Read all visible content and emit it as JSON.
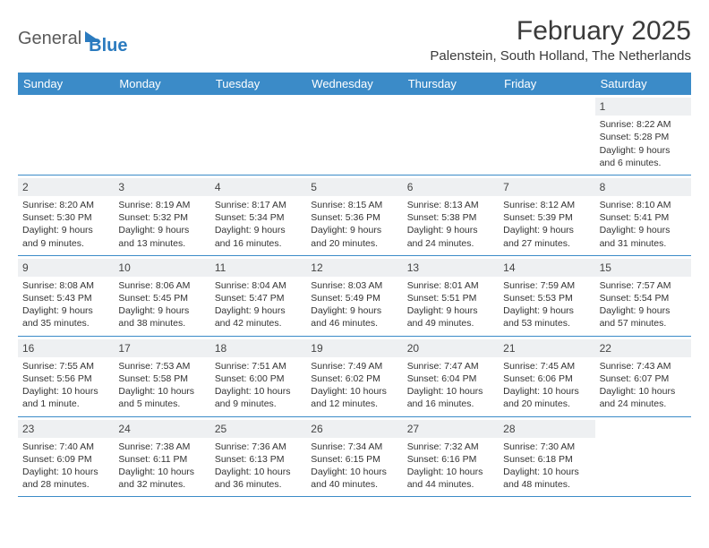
{
  "logo": {
    "text1": "General",
    "text2": "Blue"
  },
  "title": "February 2025",
  "subtitle": "Palenstein, South Holland, The Netherlands",
  "colors": {
    "header_bg": "#3b8bc8",
    "header_text": "#ffffff",
    "daynum_bg": "#eef0f2",
    "border": "#3b8bc8",
    "logo_blue": "#2b7bbf",
    "logo_gray": "#5a5a5a"
  },
  "day_names": [
    "Sunday",
    "Monday",
    "Tuesday",
    "Wednesday",
    "Thursday",
    "Friday",
    "Saturday"
  ],
  "weeks": [
    [
      null,
      null,
      null,
      null,
      null,
      null,
      {
        "n": "1",
        "sunrise": "8:22 AM",
        "sunset": "5:28 PM",
        "daylight": "9 hours and 6 minutes."
      }
    ],
    [
      {
        "n": "2",
        "sunrise": "8:20 AM",
        "sunset": "5:30 PM",
        "daylight": "9 hours and 9 minutes."
      },
      {
        "n": "3",
        "sunrise": "8:19 AM",
        "sunset": "5:32 PM",
        "daylight": "9 hours and 13 minutes."
      },
      {
        "n": "4",
        "sunrise": "8:17 AM",
        "sunset": "5:34 PM",
        "daylight": "9 hours and 16 minutes."
      },
      {
        "n": "5",
        "sunrise": "8:15 AM",
        "sunset": "5:36 PM",
        "daylight": "9 hours and 20 minutes."
      },
      {
        "n": "6",
        "sunrise": "8:13 AM",
        "sunset": "5:38 PM",
        "daylight": "9 hours and 24 minutes."
      },
      {
        "n": "7",
        "sunrise": "8:12 AM",
        "sunset": "5:39 PM",
        "daylight": "9 hours and 27 minutes."
      },
      {
        "n": "8",
        "sunrise": "8:10 AM",
        "sunset": "5:41 PM",
        "daylight": "9 hours and 31 minutes."
      }
    ],
    [
      {
        "n": "9",
        "sunrise": "8:08 AM",
        "sunset": "5:43 PM",
        "daylight": "9 hours and 35 minutes."
      },
      {
        "n": "10",
        "sunrise": "8:06 AM",
        "sunset": "5:45 PM",
        "daylight": "9 hours and 38 minutes."
      },
      {
        "n": "11",
        "sunrise": "8:04 AM",
        "sunset": "5:47 PM",
        "daylight": "9 hours and 42 minutes."
      },
      {
        "n": "12",
        "sunrise": "8:03 AM",
        "sunset": "5:49 PM",
        "daylight": "9 hours and 46 minutes."
      },
      {
        "n": "13",
        "sunrise": "8:01 AM",
        "sunset": "5:51 PM",
        "daylight": "9 hours and 49 minutes."
      },
      {
        "n": "14",
        "sunrise": "7:59 AM",
        "sunset": "5:53 PM",
        "daylight": "9 hours and 53 minutes."
      },
      {
        "n": "15",
        "sunrise": "7:57 AM",
        "sunset": "5:54 PM",
        "daylight": "9 hours and 57 minutes."
      }
    ],
    [
      {
        "n": "16",
        "sunrise": "7:55 AM",
        "sunset": "5:56 PM",
        "daylight": "10 hours and 1 minute."
      },
      {
        "n": "17",
        "sunrise": "7:53 AM",
        "sunset": "5:58 PM",
        "daylight": "10 hours and 5 minutes."
      },
      {
        "n": "18",
        "sunrise": "7:51 AM",
        "sunset": "6:00 PM",
        "daylight": "10 hours and 9 minutes."
      },
      {
        "n": "19",
        "sunrise": "7:49 AM",
        "sunset": "6:02 PM",
        "daylight": "10 hours and 12 minutes."
      },
      {
        "n": "20",
        "sunrise": "7:47 AM",
        "sunset": "6:04 PM",
        "daylight": "10 hours and 16 minutes."
      },
      {
        "n": "21",
        "sunrise": "7:45 AM",
        "sunset": "6:06 PM",
        "daylight": "10 hours and 20 minutes."
      },
      {
        "n": "22",
        "sunrise": "7:43 AM",
        "sunset": "6:07 PM",
        "daylight": "10 hours and 24 minutes."
      }
    ],
    [
      {
        "n": "23",
        "sunrise": "7:40 AM",
        "sunset": "6:09 PM",
        "daylight": "10 hours and 28 minutes."
      },
      {
        "n": "24",
        "sunrise": "7:38 AM",
        "sunset": "6:11 PM",
        "daylight": "10 hours and 32 minutes."
      },
      {
        "n": "25",
        "sunrise": "7:36 AM",
        "sunset": "6:13 PM",
        "daylight": "10 hours and 36 minutes."
      },
      {
        "n": "26",
        "sunrise": "7:34 AM",
        "sunset": "6:15 PM",
        "daylight": "10 hours and 40 minutes."
      },
      {
        "n": "27",
        "sunrise": "7:32 AM",
        "sunset": "6:16 PM",
        "daylight": "10 hours and 44 minutes."
      },
      {
        "n": "28",
        "sunrise": "7:30 AM",
        "sunset": "6:18 PM",
        "daylight": "10 hours and 48 minutes."
      },
      null
    ]
  ],
  "labels": {
    "sunrise": "Sunrise:",
    "sunset": "Sunset:",
    "daylight": "Daylight:"
  }
}
